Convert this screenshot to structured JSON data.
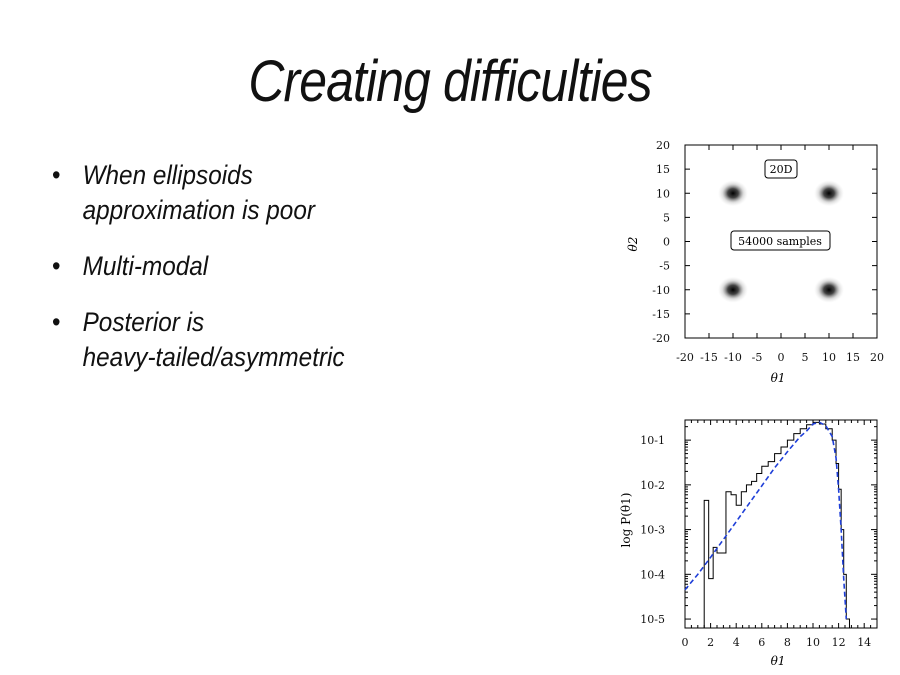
{
  "slide": {
    "title": "Creating difficulties",
    "bullets": [
      {
        "line1": "When ellipsoids",
        "line2": "approximation is poor"
      },
      {
        "line1": "Multi-modal",
        "line2": ""
      },
      {
        "line1": "Posterior is",
        "line2": "heavy-tailed/asymmetric"
      }
    ],
    "bullet_marker": "•"
  },
  "chart_data": [
    {
      "type": "heatmap",
      "xlabel": "θ1",
      "ylabel": "θ2",
      "xlim": [
        -20,
        20
      ],
      "ylim": [
        -20,
        20
      ],
      "xticks": [
        "-20",
        "-15",
        "-10",
        "-5",
        "0",
        "5",
        "10",
        "15",
        "20"
      ],
      "yticks": [
        "20",
        "15",
        "10",
        "5",
        "0",
        "-5",
        "-10",
        "-15",
        "-20"
      ],
      "annotations": [
        "20D",
        "54000 samples"
      ],
      "modes": [
        {
          "x": -10,
          "y": 10
        },
        {
          "x": 10,
          "y": 10
        },
        {
          "x": -10,
          "y": -10
        },
        {
          "x": 10,
          "y": -10
        }
      ]
    },
    {
      "type": "line",
      "scale_y": "log",
      "xlabel": "θ1",
      "ylabel": "log P(θ1)",
      "xlim": [
        0,
        15
      ],
      "ylim_exponent": [
        -5.2,
        -0.55
      ],
      "xticks": [
        "0",
        "2",
        "4",
        "6",
        "8",
        "10",
        "12",
        "14"
      ],
      "yticks": [
        "10-1",
        "10-2",
        "10-3",
        "10-4",
        "10-5"
      ],
      "series": [
        {
          "style": "dashed-blue",
          "x": [
            0,
            1,
            2,
            3,
            4,
            5,
            6,
            7,
            8,
            9,
            9.5,
            10,
            10.5,
            11,
            11.5,
            11.8,
            12,
            12.2,
            12.4,
            12.6
          ],
          "y": [
            4.5e-05,
            0.0001,
            0.00024,
            0.0006,
            0.0015,
            0.0038,
            0.0095,
            0.024,
            0.055,
            0.12,
            0.16,
            0.23,
            0.25,
            0.21,
            0.12,
            0.04,
            0.008,
            0.001,
            8e-05,
            1e-05
          ]
        },
        {
          "style": "histogram-black",
          "x": [
            1.5,
            1.85,
            2.2,
            2.5,
            3.2,
            3.6,
            4.0,
            4.4,
            4.8,
            5.2,
            5.6,
            6.0,
            6.5,
            7.0,
            7.5,
            8.0,
            8.5,
            9.0,
            9.5,
            10.0,
            10.5,
            11.0,
            11.5,
            11.8,
            12.0,
            12.2,
            12.4,
            12.6
          ],
          "y": [
            0.0045,
            8e-05,
            0.0004,
            0.0003,
            0.007,
            0.006,
            0.0035,
            0.007,
            0.01,
            0.012,
            0.018,
            0.026,
            0.033,
            0.05,
            0.07,
            0.1,
            0.14,
            0.18,
            0.22,
            0.25,
            0.23,
            0.18,
            0.1,
            0.03,
            0.008,
            0.001,
            0.0001,
            1e-05
          ]
        }
      ]
    }
  ]
}
